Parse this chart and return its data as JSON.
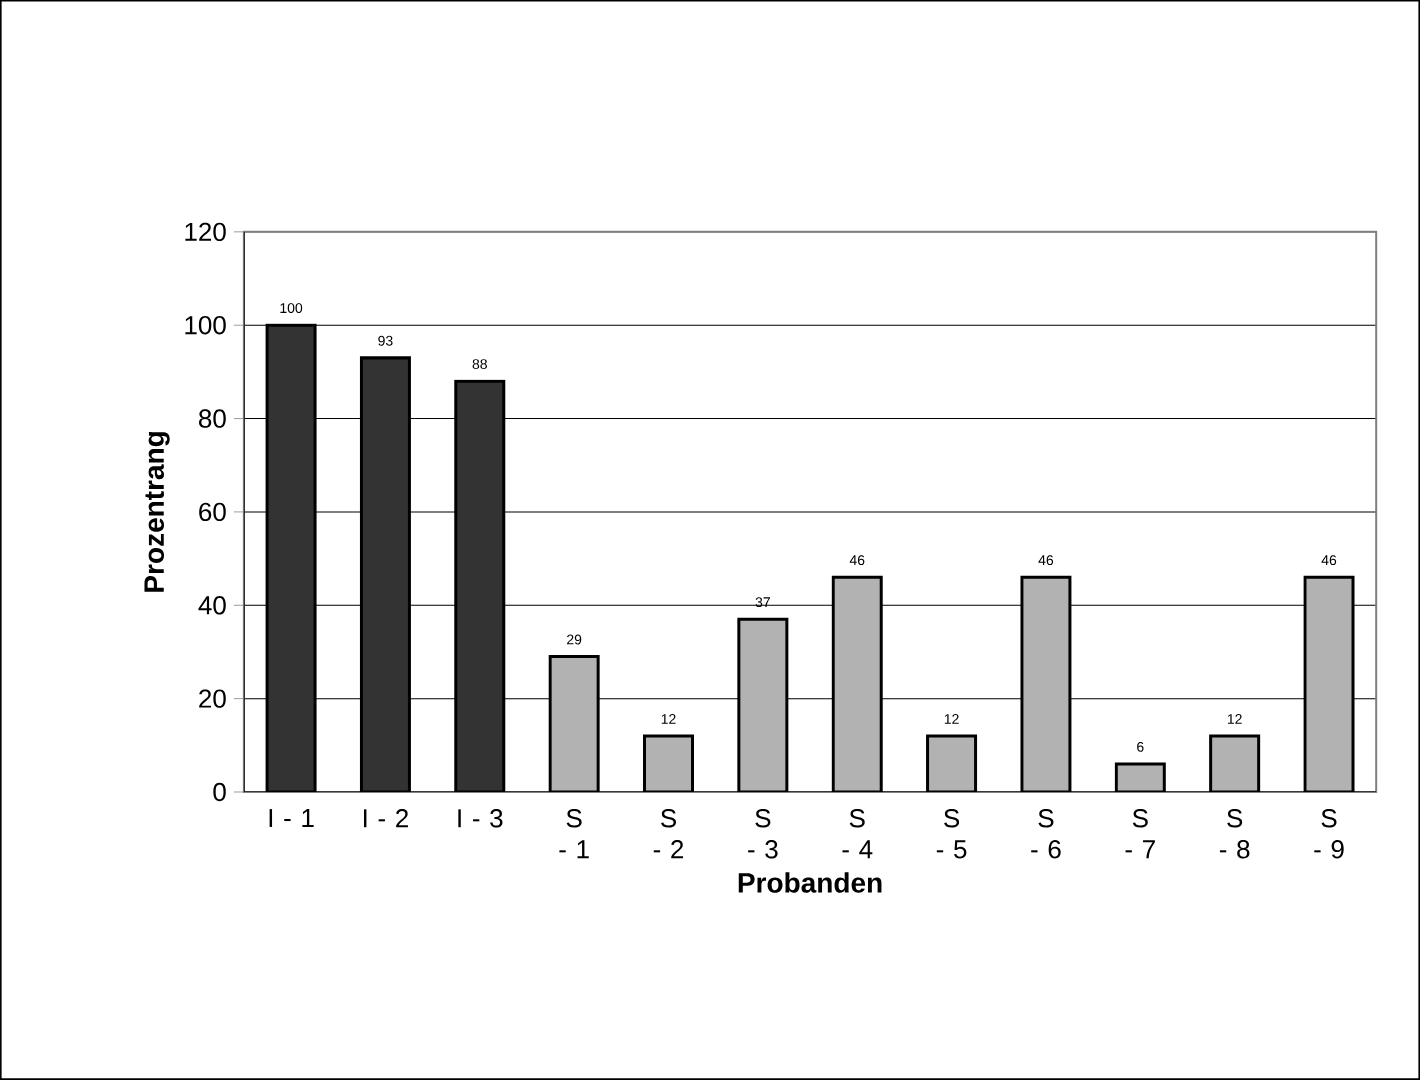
{
  "chart_data": {
    "type": "bar",
    "xlabel": "Probanden",
    "ylabel": "Prozentrang",
    "categories": [
      "I - 1",
      "I - 2",
      "I - 3",
      "S - 1",
      "S - 2",
      "S - 3",
      "S - 4",
      "S - 5",
      "S - 6",
      "S - 7",
      "S - 8",
      "S - 9"
    ],
    "values": [
      100,
      93,
      88,
      29,
      12,
      37,
      46,
      12,
      46,
      6,
      12,
      46
    ],
    "colors": [
      "#333333",
      "#333333",
      "#333333",
      "#b2b2b2",
      "#b2b2b2",
      "#b2b2b2",
      "#b2b2b2",
      "#b2b2b2",
      "#b2b2b2",
      "#b2b2b2",
      "#b2b2b2",
      "#b2b2b2"
    ],
    "ylim": [
      0,
      120
    ],
    "yticks": [
      0,
      20,
      40,
      60,
      80,
      100,
      120
    ],
    "grid": "y",
    "data_labels": true
  }
}
